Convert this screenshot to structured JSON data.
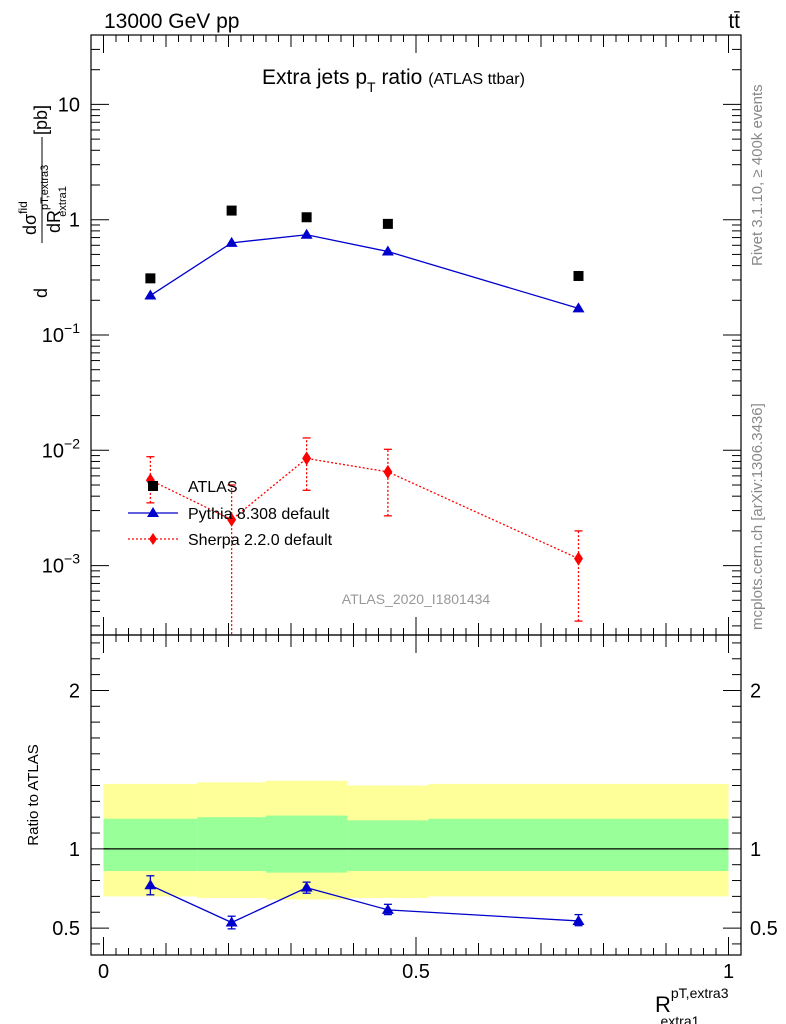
{
  "header": {
    "energy_label": "13000 GeV pp",
    "process_label": "tt̄"
  },
  "side_text": {
    "rivet": "Rivet 3.1.10, ≥ 400k events",
    "mcplots": "mcplots.cern.ch [arXiv:1306.3436]"
  },
  "chart_data": [
    {
      "type": "scatter",
      "title_main": "Extra jets p",
      "title_sub": "T",
      "title_rest": " ratio",
      "title_paren": "(ATLAS ttbar)",
      "analysis_id": "ATLAS_2020_I1801434",
      "ylabel": "dσ^fid / dR^pT,extra3_extra1 [pb]",
      "yscale": "log",
      "ylim": [
        0.00025,
        40
      ],
      "xlim": [
        -0.02,
        1.02
      ],
      "y_ticks": [
        {
          "value": 0.001,
          "base": "10",
          "exp": "−3"
        },
        {
          "value": 0.01,
          "base": "10",
          "exp": "−2"
        },
        {
          "value": 0.1,
          "base": "10",
          "exp": "−1"
        },
        {
          "value": 1,
          "base": "1",
          "exp": ""
        },
        {
          "value": 10,
          "base": "10",
          "exp": ""
        }
      ],
      "legend_position": "lower-left",
      "series": [
        {
          "name": "ATLAS",
          "style": "data",
          "color": "#000000",
          "x": [
            0.075,
            0.205,
            0.325,
            0.455,
            0.76
          ],
          "y": [
            0.31,
            1.2,
            1.05,
            0.92,
            0.325
          ]
        },
        {
          "name": "Pythia 8.308 default",
          "style": "line-triangle",
          "color": "#0000cc",
          "x": [
            0.075,
            0.205,
            0.325,
            0.455,
            0.76
          ],
          "y": [
            0.22,
            0.63,
            0.74,
            0.53,
            0.17
          ]
        },
        {
          "name": "Sherpa 2.2.0 default",
          "style": "dotted-diamond",
          "color": "#ff0000",
          "x": [
            0.075,
            0.205,
            0.325,
            0.455,
            0.76
          ],
          "y": [
            0.0055,
            0.0025,
            0.0085,
            0.0065,
            0.00115
          ],
          "y_low": [
            0.0035,
            0.0002,
            0.0045,
            0.0027,
            0.00033
          ],
          "y_high": [
            0.0088,
            0.005,
            0.0128,
            0.0102,
            0.002
          ]
        }
      ]
    },
    {
      "type": "scatter",
      "ylabel": "Ratio to ATLAS",
      "xlabel_main": "R",
      "xlabel_sup": "pT,extra3",
      "xlabel_sub": "extra1",
      "ylim": [
        0.33,
        2.35
      ],
      "xlim": [
        -0.02,
        1.02
      ],
      "y_ticks": [
        0.5,
        1,
        2
      ],
      "y_tick_labels": [
        "0.5",
        "1",
        "2"
      ],
      "x_ticks": [
        0,
        0.5,
        1
      ],
      "x_tick_labels": [
        "0",
        "0.5",
        "1"
      ],
      "bands": [
        {
          "x0": 0.0,
          "x1": 0.15,
          "outer": [
            0.7,
            1.41
          ],
          "inner": [
            0.86,
            1.19
          ]
        },
        {
          "x0": 0.15,
          "x1": 0.26,
          "outer": [
            0.69,
            1.42
          ],
          "inner": [
            0.86,
            1.2
          ]
        },
        {
          "x0": 0.26,
          "x1": 0.39,
          "outer": [
            0.68,
            1.43
          ],
          "inner": [
            0.85,
            1.21
          ]
        },
        {
          "x0": 0.39,
          "x1": 0.52,
          "outer": [
            0.69,
            1.4
          ],
          "inner": [
            0.86,
            1.18
          ]
        },
        {
          "x0": 0.52,
          "x1": 1.0,
          "outer": [
            0.7,
            1.41
          ],
          "inner": [
            0.86,
            1.19
          ]
        }
      ],
      "series": [
        {
          "name": "Pythia 8.308 default",
          "color": "#0000cc",
          "x": [
            0.075,
            0.205,
            0.325,
            0.455,
            0.76
          ],
          "y": [
            0.77,
            0.535,
            0.755,
            0.615,
            0.545
          ],
          "y_low": [
            0.71,
            0.495,
            0.72,
            0.585,
            0.515
          ],
          "y_high": [
            0.83,
            0.575,
            0.79,
            0.65,
            0.585
          ]
        }
      ]
    }
  ]
}
